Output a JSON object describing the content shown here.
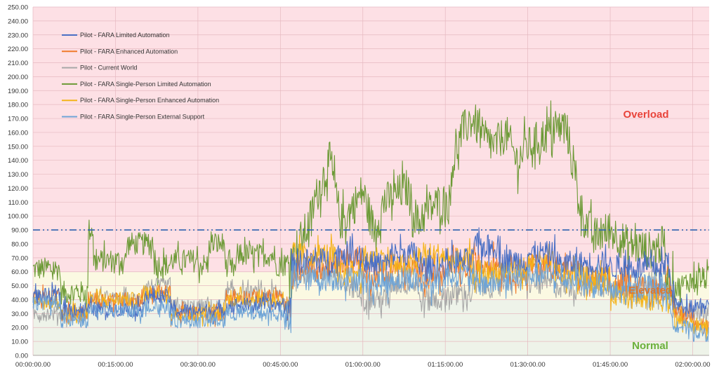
{
  "chart_data": {
    "type": "line",
    "title": "",
    "xlabel": "",
    "ylabel": "",
    "xlim_minutes": [
      0,
      123
    ],
    "ylim": [
      0,
      250
    ],
    "x_tick_labels": [
      "00:00:00.00",
      "00:15:00.00",
      "00:30:00.00",
      "00:45:00.00",
      "01:00:00.00",
      "01:15:00.00",
      "01:30:00.00",
      "01:45:00.00",
      "02:00:00.00"
    ],
    "x_tick_minutes": [
      0,
      15,
      30,
      45,
      60,
      75,
      90,
      105,
      120
    ],
    "y_tick_labels": [
      "0.00",
      "10.00",
      "20.00",
      "30.00",
      "40.00",
      "50.00",
      "60.00",
      "70.00",
      "80.00",
      "90.00",
      "100.00",
      "110.00",
      "120.00",
      "130.00",
      "140.00",
      "150.00",
      "160.00",
      "170.00",
      "180.00",
      "190.00",
      "200.00",
      "210.00",
      "220.00",
      "230.00",
      "240.00",
      "250.00"
    ],
    "grid": true,
    "legend_position": "top-left",
    "threshold": {
      "value": 90,
      "color": "#2e62b0",
      "style": "dash-dot"
    },
    "zones": [
      {
        "label": "Normal",
        "from": 0,
        "to": 40,
        "color": "#eef3e9",
        "text_color": "#6bb03a"
      },
      {
        "label": "Elevated",
        "from": 40,
        "to": 60,
        "color": "#fbf9e2",
        "text_color": "#e0782a"
      },
      {
        "label": "Overload",
        "from": 60,
        "to": 250,
        "color": "#fde0e5",
        "text_color": "#e8433a"
      }
    ],
    "series": [
      {
        "name": "Pilot - FARA Limited Automation",
        "color": "#4a6fc4",
        "x": [
          0,
          5,
          5,
          10,
          10,
          20,
          20,
          25,
          25,
          35,
          35,
          45,
          47,
          47,
          55,
          55,
          60,
          60,
          65,
          65,
          70,
          70,
          75,
          75,
          80,
          80,
          85,
          85,
          90,
          90,
          95,
          95,
          100,
          100,
          105,
          105,
          110,
          110,
          115,
          115,
          117,
          120,
          123
        ],
        "y": [
          43,
          43,
          33,
          33,
          33,
          33,
          42,
          42,
          32,
          32,
          36,
          36,
          32,
          68,
          68,
          73,
          73,
          66,
          66,
          73,
          73,
          63,
          63,
          68,
          68,
          78,
          78,
          68,
          68,
          73,
          73,
          66,
          66,
          66,
          66,
          63,
          63,
          63,
          63,
          73,
          36,
          36,
          38
        ]
      },
      {
        "name": "Pilot - FARA Enhanced Automation",
        "color": "#f07a2a",
        "x": [
          0,
          5,
          5,
          10,
          10,
          20,
          20,
          25,
          25,
          35,
          35,
          45,
          47,
          47,
          55,
          55,
          60,
          60,
          65,
          65,
          70,
          70,
          75,
          75,
          80,
          80,
          85,
          85,
          90,
          90,
          95,
          95,
          100,
          100,
          105,
          105,
          110,
          110,
          115,
          115,
          117,
          120,
          123
        ],
        "y": [
          42,
          42,
          30,
          30,
          40,
          40,
          45,
          45,
          30,
          30,
          42,
          42,
          28,
          62,
          62,
          68,
          68,
          58,
          58,
          62,
          62,
          58,
          58,
          63,
          63,
          66,
          66,
          60,
          60,
          64,
          64,
          60,
          60,
          55,
          55,
          50,
          50,
          48,
          48,
          55,
          32,
          28,
          20
        ]
      },
      {
        "name": "Pilot - Current World",
        "color": "#a8a8a8",
        "x": [
          0,
          5,
          5,
          10,
          10,
          20,
          20,
          25,
          25,
          35,
          35,
          45,
          47,
          47,
          55,
          55,
          60,
          60,
          65,
          65,
          70,
          70,
          75,
          75,
          80,
          80,
          85,
          85,
          90,
          90,
          95,
          95,
          100,
          100,
          105,
          105,
          110,
          110,
          115,
          115,
          117,
          120,
          123
        ],
        "y": [
          30,
          30,
          30,
          30,
          40,
          40,
          50,
          50,
          35,
          35,
          45,
          45,
          30,
          60,
          60,
          50,
          50,
          40,
          40,
          52,
          52,
          40,
          40,
          44,
          44,
          50,
          50,
          55,
          55,
          52,
          52,
          50,
          50,
          50,
          50,
          48,
          48,
          48,
          48,
          50,
          30,
          30,
          30
        ]
      },
      {
        "name": "Pilot - FARA Single-Person Limited Automation",
        "color": "#6c9a36",
        "x": [
          0,
          5,
          5,
          10,
          10,
          11,
          11,
          17,
          17,
          22,
          22,
          25,
          25,
          30,
          30,
          32,
          32,
          35,
          35,
          37,
          37,
          44,
          44,
          47,
          48,
          50,
          52,
          54,
          56,
          58,
          60,
          62,
          64,
          66,
          68,
          70,
          72,
          74,
          76,
          76,
          78,
          80,
          82,
          84,
          86,
          88,
          90,
          92,
          94,
          97,
          98,
          100,
          102,
          105,
          108,
          110,
          112,
          115,
          115,
          117,
          120,
          123
        ],
        "y": [
          62,
          62,
          45,
          45,
          90,
          90,
          68,
          68,
          80,
          80,
          65,
          65,
          68,
          68,
          65,
          65,
          80,
          80,
          62,
          62,
          72,
          72,
          65,
          65,
          78,
          92,
          120,
          140,
          95,
          105,
          118,
          90,
          110,
          115,
          120,
          95,
          105,
          110,
          110,
          132,
          160,
          170,
          155,
          150,
          160,
          140,
          150,
          155,
          160,
          165,
          140,
          100,
          85,
          90,
          80,
          78,
          75,
          80,
          55,
          48,
          55,
          55
        ]
      },
      {
        "name": "Pilot - FARA Single-Person Enhanced Automation",
        "color": "#f4b41a",
        "x": [
          0,
          5,
          5,
          10,
          10,
          20,
          20,
          25,
          25,
          35,
          35,
          45,
          47,
          47,
          55,
          55,
          60,
          60,
          65,
          65,
          70,
          70,
          75,
          75,
          80,
          80,
          85,
          85,
          90,
          90,
          95,
          95,
          100,
          100,
          105,
          105,
          110,
          110,
          115,
          115,
          117,
          120,
          123
        ],
        "y": [
          38,
          38,
          30,
          30,
          40,
          40,
          45,
          45,
          30,
          30,
          40,
          40,
          30,
          72,
          72,
          60,
          60,
          70,
          70,
          64,
          64,
          72,
          72,
          68,
          68,
          60,
          60,
          62,
          62,
          66,
          66,
          58,
          58,
          55,
          55,
          45,
          45,
          40,
          40,
          45,
          25,
          22,
          20
        ]
      },
      {
        "name": "Pilot - FARA Single-Person External Support",
        "color": "#6ea4d6",
        "x": [
          0,
          5,
          5,
          10,
          10,
          20,
          20,
          25,
          25,
          35,
          35,
          45,
          47,
          47,
          55,
          55,
          60,
          60,
          65,
          65,
          70,
          70,
          75,
          75,
          80,
          80,
          85,
          85,
          90,
          90,
          95,
          95,
          100,
          100,
          105,
          105,
          110,
          110,
          115,
          115,
          117,
          120,
          123
        ],
        "y": [
          38,
          38,
          25,
          25,
          32,
          32,
          35,
          35,
          25,
          25,
          30,
          30,
          20,
          55,
          55,
          55,
          55,
          52,
          52,
          55,
          55,
          52,
          52,
          58,
          58,
          52,
          52,
          55,
          55,
          58,
          58,
          55,
          55,
          50,
          50,
          45,
          45,
          50,
          50,
          45,
          22,
          18,
          15
        ]
      }
    ]
  }
}
